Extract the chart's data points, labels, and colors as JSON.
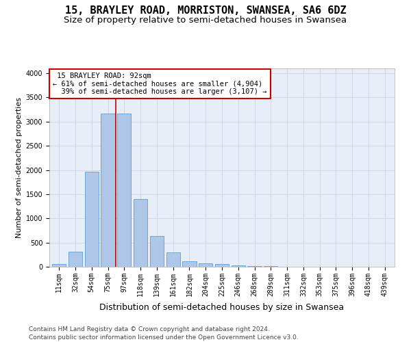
{
  "title": "15, BRAYLEY ROAD, MORRISTON, SWANSEA, SA6 6DZ",
  "subtitle": "Size of property relative to semi-detached houses in Swansea",
  "xlabel": "Distribution of semi-detached houses by size in Swansea",
  "ylabel": "Number of semi-detached properties",
  "footer_line1": "Contains HM Land Registry data © Crown copyright and database right 2024.",
  "footer_line2": "Contains public sector information licensed under the Open Government Licence v3.0.",
  "bar_labels": [
    "11sqm",
    "32sqm",
    "54sqm",
    "75sqm",
    "97sqm",
    "118sqm",
    "139sqm",
    "161sqm",
    "182sqm",
    "204sqm",
    "225sqm",
    "246sqm",
    "268sqm",
    "289sqm",
    "311sqm",
    "332sqm",
    "353sqm",
    "375sqm",
    "396sqm",
    "418sqm",
    "439sqm"
  ],
  "bar_values": [
    55,
    310,
    1970,
    3160,
    3160,
    1400,
    640,
    300,
    110,
    70,
    55,
    30,
    10,
    10,
    5,
    5,
    3,
    2,
    2,
    2,
    2
  ],
  "bar_color": "#aec6e8",
  "bar_edge_color": "#5a9fd4",
  "ylim": [
    0,
    4100
  ],
  "yticks": [
    0,
    500,
    1000,
    1500,
    2000,
    2500,
    3000,
    3500,
    4000
  ],
  "property_label": "15 BRAYLEY ROAD: 92sqm",
  "pct_smaller": 61,
  "n_smaller": 4904,
  "pct_larger": 39,
  "n_larger": 3107,
  "redline_x": 3.5,
  "annotation_box_color": "#ffffff",
  "annotation_box_edge": "#cc0000",
  "redline_color": "#cc0000",
  "grid_color": "#d0d8e8",
  "background_color": "#e8eef8",
  "title_fontsize": 11,
  "subtitle_fontsize": 9.5,
  "xlabel_fontsize": 9,
  "ylabel_fontsize": 8,
  "annotation_fontsize": 7.5,
  "tick_fontsize": 7,
  "footer_fontsize": 6.5
}
